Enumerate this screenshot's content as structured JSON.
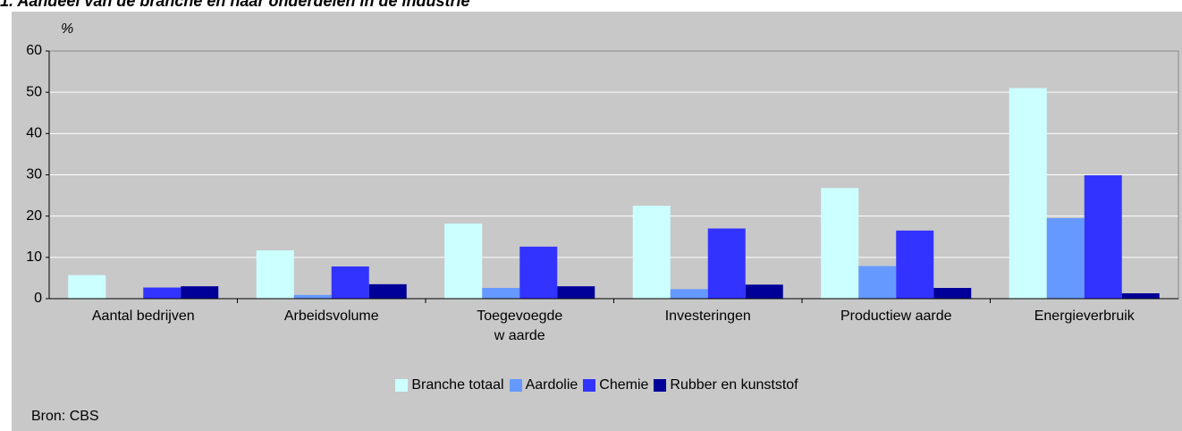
{
  "chart_data": {
    "type": "bar",
    "title": "1. Aandeel van de branche en haar onderdelen in de industrie",
    "y_label": "%",
    "source": "Bron: CBS",
    "categories": [
      "Aantal bedrijven",
      "Arbeidsvolume",
      "Toegevoegde\nw aarde",
      "Investeringen",
      "Productiew aarde",
      "Energieverbruik"
    ],
    "series": [
      {
        "name": "Branche totaal",
        "color": "#ccffff",
        "values": [
          5.7,
          11.7,
          18.2,
          22.5,
          26.8,
          51.0
        ]
      },
      {
        "name": "Aardolie",
        "color": "#6699ff",
        "values": [
          0,
          0.9,
          2.6,
          2.3,
          7.9,
          19.5
        ]
      },
      {
        "name": "Chemie",
        "color": "#3333ff",
        "values": [
          2.7,
          7.8,
          12.6,
          17.0,
          16.5,
          29.9
        ]
      },
      {
        "name": "Rubber en kunststof",
        "color": "#000099",
        "values": [
          3.0,
          3.5,
          3.0,
          3.4,
          2.6,
          1.3
        ]
      }
    ],
    "ylim": [
      0,
      60
    ],
    "yticks": [
      0,
      10,
      20,
      30,
      40,
      50,
      60
    ],
    "grid": true,
    "legend": "bottom"
  }
}
